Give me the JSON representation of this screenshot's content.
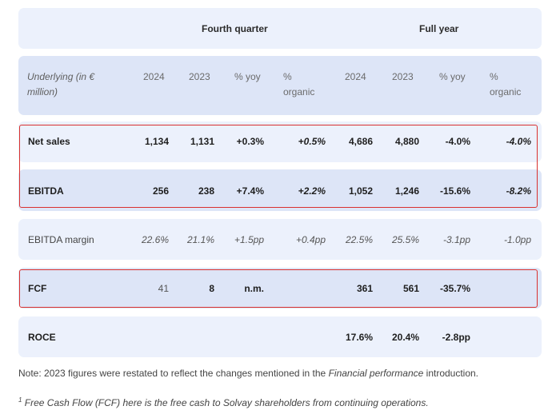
{
  "header": {
    "group_q4": "Fourth quarter",
    "group_fy": "Full year",
    "underlying": "Underlying (in € million)",
    "cols": [
      "2024",
      "2023",
      "% yoy",
      "% organic",
      "2024",
      "2023",
      "% yoy",
      "% organic"
    ]
  },
  "rows": [
    {
      "label": "Net sales",
      "values": [
        "1,134",
        "1,131",
        "+0.3%",
        "+0.5%",
        "4,686",
        "4,880",
        "-4.0%",
        "-4.0%"
      ]
    },
    {
      "label": "EBITDA",
      "values": [
        "256",
        "238",
        "+7.4%",
        "+2.2%",
        "1,052",
        "1,246",
        "-15.6%",
        "-8.2%"
      ]
    },
    {
      "label": "EBITDA margin",
      "values": [
        "22.6%",
        "21.1%",
        "+1.5pp",
        "+0.4pp",
        "22.5%",
        "25.5%",
        "-3.1pp",
        "-1.0pp"
      ]
    },
    {
      "label": "FCF",
      "values": [
        "41",
        "8",
        "n.m.",
        "",
        "361",
        "561",
        "-35.7%",
        ""
      ]
    },
    {
      "label": "ROCE",
      "values": [
        "",
        "",
        "",
        "",
        "17.6%",
        "20.4%",
        "-2.8pp",
        ""
      ]
    }
  ],
  "notes": {
    "note_prefix": "Note: 2023 figures were restated to reflect the changes mentioned in the ",
    "note_em": "Financial performance",
    "note_suffix": " introduction.",
    "footnote_mark": "1",
    "footnote_text": " Free Cash Flow (FCF) here is the free cash to Solvay shareholders from continuing operations."
  },
  "colors": {
    "band_light": "#ecf1fc",
    "band_mid": "#dde5f7",
    "highlight": "#d9312f"
  }
}
